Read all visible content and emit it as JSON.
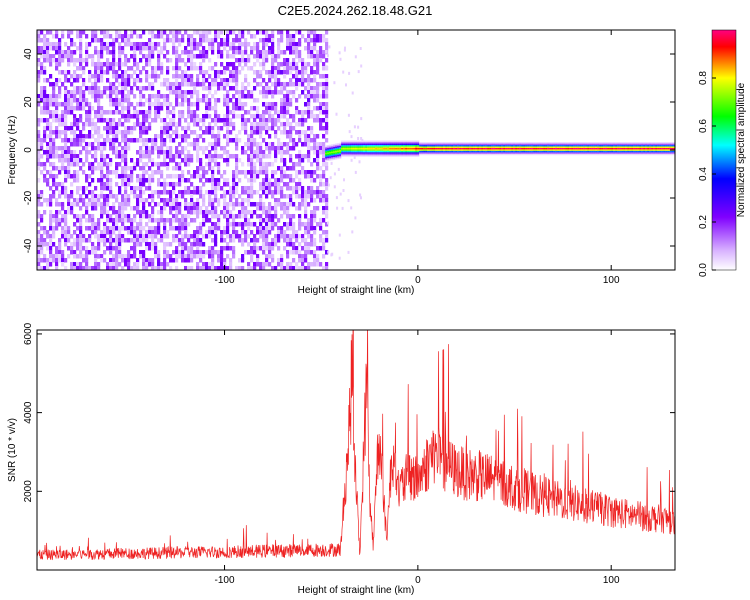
{
  "title": "C2E5.2024.262.18.48.G21",
  "chart_data": [
    {
      "type": "heatmap",
      "xlabel": "Height of straight line (km)",
      "ylabel": "Frequency (Hz)",
      "xlim": [
        -197,
        133
      ],
      "ylim": [
        -50,
        50
      ],
      "xticks": [
        -100,
        0,
        100
      ],
      "yticks": [
        -40,
        -20,
        0,
        20,
        40
      ],
      "colorbar": {
        "label": "Normalized spectral amplitude",
        "range": [
          0.0,
          1.0
        ],
        "ticks": [
          0.0,
          0.2,
          0.4,
          0.6,
          0.8
        ],
        "colormap": "rainbow (white to violet, blue, cyan, green, yellow, red)"
      },
      "regions": [
        {
          "x_range": [
            -197,
            -48
          ],
          "description": "noise",
          "amplitude_range": [
            0.0,
            0.15
          ]
        },
        {
          "x_range": [
            -48,
            133
          ],
          "peak_frequency": 0,
          "peak_amplitude_range": [
            0.6,
            1.0
          ]
        }
      ]
    },
    {
      "type": "line",
      "xlabel": "Height of straight line (km)",
      "ylabel": "SNR (10 * v/v)",
      "xlim": [
        -197,
        133
      ],
      "ylim": [
        0,
        6100
      ],
      "xticks": [
        -100,
        0,
        100
      ],
      "yticks": [
        2000,
        4000,
        6000
      ],
      "color": "#ff0000",
      "points": [
        [
          -197,
          380
        ],
        [
          -150,
          420
        ],
        [
          -100,
          460
        ],
        [
          -60,
          500
        ],
        [
          -40,
          520
        ],
        [
          -36,
          3200
        ],
        [
          -34,
          5000
        ],
        [
          -32,
          2200
        ],
        [
          -30,
          400
        ],
        [
          -28,
          3000
        ],
        [
          -26,
          5300
        ],
        [
          -25,
          1800
        ],
        [
          -23,
          600
        ],
        [
          -21,
          2800
        ],
        [
          -19,
          3500
        ],
        [
          -18,
          1800
        ],
        [
          -16,
          900
        ],
        [
          -14,
          2500
        ],
        [
          -12,
          3200
        ],
        [
          -10,
          2000
        ],
        [
          -5,
          2400
        ],
        [
          0,
          2300
        ],
        [
          8,
          3000
        ],
        [
          15,
          2700
        ],
        [
          20,
          2500
        ],
        [
          30,
          2400
        ],
        [
          40,
          2300
        ],
        [
          55,
          2000
        ],
        [
          70,
          1800
        ],
        [
          90,
          1600
        ],
        [
          110,
          1400
        ],
        [
          133,
          1250
        ]
      ]
    }
  ]
}
